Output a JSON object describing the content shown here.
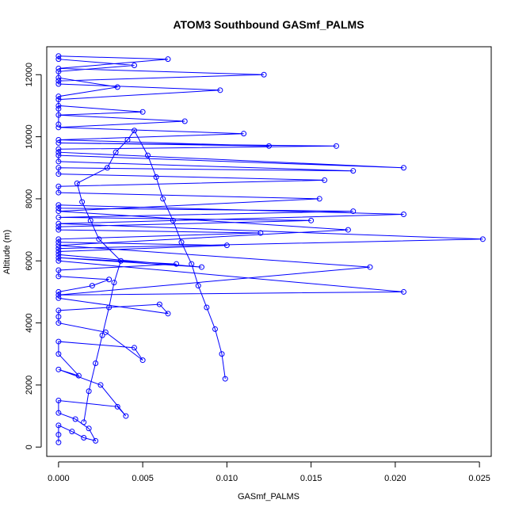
{
  "chart_data": {
    "type": "scatter",
    "title": "ATOM3 Southbound GASmf_PALMS",
    "xlabel": "GASmf_PALMS",
    "ylabel": "Altitude (m)",
    "xlim": [
      -0.0007,
      0.0257
    ],
    "ylim": [
      -300,
      12900
    ],
    "x_ticks": [
      0.0,
      0.005,
      0.01,
      0.015,
      0.02,
      0.025
    ],
    "x_tick_labels": [
      "0.000",
      "0.005",
      "0.010",
      "0.015",
      "0.020",
      "0.025"
    ],
    "y_ticks": [
      0,
      2000,
      4000,
      6000,
      8000,
      10000,
      12000
    ],
    "y_tick_labels": [
      "0",
      "2000",
      "4000",
      "6000",
      "8000",
      "10000",
      "12000"
    ],
    "grid": false,
    "legend": "none",
    "marker": "open-circle",
    "connect_points": true,
    "series": [
      {
        "color": "#0000ff",
        "x": [
          0.0,
          0.0,
          0.0,
          0.0008,
          0.0015,
          0.0022,
          0.0018,
          0.001,
          0.0,
          0.0,
          0.0035,
          0.004,
          0.0025,
          0.0,
          0.0012,
          0.0,
          0.0,
          0.0045,
          0.005,
          0.0028,
          0.0,
          0.0,
          0.0,
          0.006,
          0.0065,
          0.0,
          0.0,
          0.002,
          0.003,
          0.0,
          0.0,
          0.007,
          0.0,
          0.0085,
          0.0,
          0.0,
          0.01,
          0.0,
          0.0,
          0.012,
          0.0,
          0.0,
          0.015,
          0.0,
          0.0175,
          0.0,
          0.0,
          0.0205,
          0.0,
          0.0252,
          0.0,
          0.0,
          0.0205,
          0.0,
          0.0185,
          0.0,
          0.0172,
          0.0,
          0.0155,
          0.0,
          0.0,
          0.0158,
          0.0,
          0.0,
          0.0175,
          0.0,
          0.0,
          0.0205,
          0.0,
          0.0,
          0.0165,
          0.0,
          0.0125,
          0.0,
          0.011,
          0.0,
          0.0075,
          0.0,
          0.005,
          0.0,
          0.0,
          0.0096,
          0.0,
          0.0,
          0.0122,
          0.0,
          0.0065,
          0.0,
          0.0,
          0.0045,
          0.0,
          0.0,
          0.0035,
          0.0,
          0.0,
          0.0
        ],
        "y": [
          150,
          400,
          700,
          500,
          300,
          200,
          600,
          900,
          1100,
          1500,
          1300,
          1000,
          2000,
          2500,
          2300,
          3000,
          3400,
          3200,
          2800,
          3700,
          4000,
          4200,
          4400,
          4600,
          4300,
          4800,
          5000,
          5200,
          5400,
          5500,
          5700,
          5900,
          6100,
          5800,
          6200,
          6300,
          6500,
          6600,
          6700,
          6900,
          7000,
          7100,
          7300,
          7400,
          7600,
          7700,
          7800,
          7500,
          7200,
          6700,
          6400,
          6000,
          5000,
          4900,
          5800,
          6500,
          7000,
          7600,
          8000,
          8200,
          8400,
          8600,
          8800,
          9000,
          8900,
          9200,
          9400,
          9000,
          9500,
          9600,
          9700,
          9800,
          9700,
          9900,
          10100,
          10300,
          10500,
          10700,
          10800,
          11000,
          11200,
          11500,
          11700,
          11800,
          12000,
          12200,
          12500,
          12600,
          12500,
          12300,
          12100,
          11900,
          11600,
          11300,
          10900,
          10400
        ]
      },
      {
        "color": "#0000ff",
        "x": [
          0.0015,
          0.0018,
          0.0022,
          0.0026,
          0.003,
          0.0033,
          0.0037,
          0.0024,
          0.0019,
          0.0014,
          0.0011,
          0.0029,
          0.0034,
          0.0041,
          0.0045,
          0.0053,
          0.0058,
          0.0062,
          0.0068,
          0.0073,
          0.0079,
          0.0083,
          0.0088,
          0.0093,
          0.0097,
          0.0099
        ],
        "y": [
          800,
          1800,
          2700,
          3600,
          4500,
          5300,
          6000,
          6700,
          7300,
          7900,
          8500,
          9000,
          9500,
          9900,
          10200,
          9400,
          8700,
          8000,
          7300,
          6600,
          5900,
          5200,
          4500,
          3800,
          3000,
          2200
        ]
      }
    ]
  }
}
